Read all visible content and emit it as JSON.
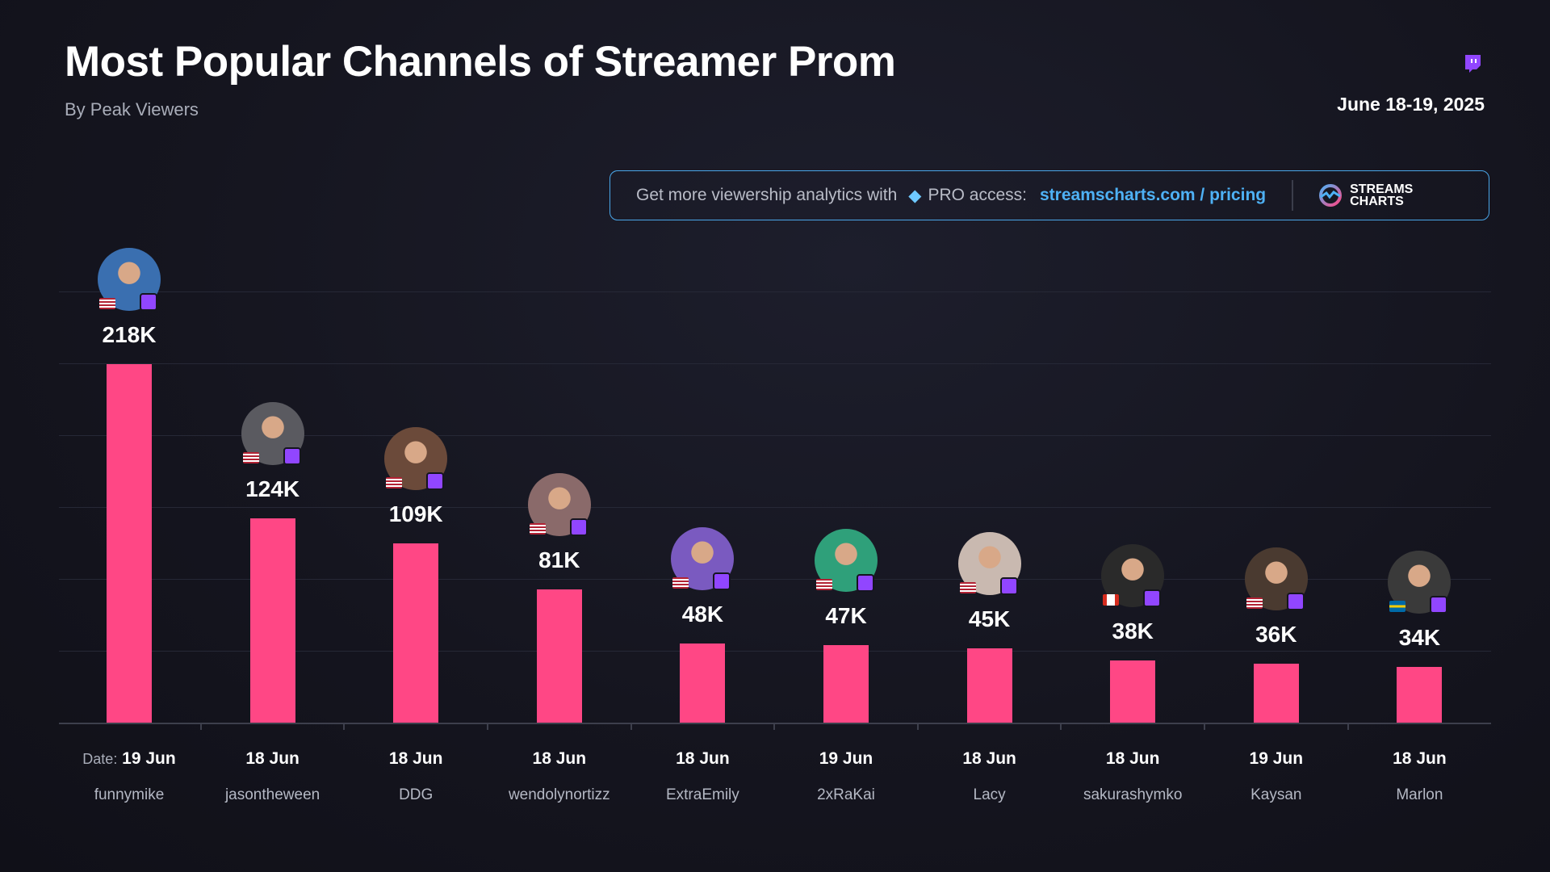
{
  "header": {
    "title": "Most Popular Channels of Streamer Prom",
    "subtitle": "By Peak Viewers",
    "date": "June 18-19, 2025"
  },
  "banner": {
    "text": "Get more viewership analytics with",
    "pro": "PRO access:",
    "link": "streamscharts.com / pricing",
    "logo_line1": "STREAMS",
    "logo_line2": "CHARTS"
  },
  "colors": {
    "bar": "#ff4785",
    "twitch": "#9146ff",
    "accent": "#4eb1f5"
  },
  "chart_data": {
    "type": "bar",
    "title": "Most Popular Channels of Streamer Prom",
    "subtitle": "By Peak Viewers",
    "date_prefix": "Date:",
    "categories": [
      "funnymike",
      "jasontheween",
      "DDG",
      "wendolynortizz",
      "ExtraEmily",
      "2xRaKai",
      "Lacy",
      "sakurashymko",
      "Kaysan",
      "Marlon"
    ],
    "dates": [
      "19 Jun",
      "18 Jun",
      "18 Jun",
      "18 Jun",
      "18 Jun",
      "19 Jun",
      "18 Jun",
      "18 Jun",
      "19 Jun",
      "18 Jun"
    ],
    "values": [
      218,
      124,
      109,
      81,
      48,
      47,
      45,
      38,
      36,
      34
    ],
    "labels": [
      "218K",
      "124K",
      "109K",
      "81K",
      "48K",
      "47K",
      "45K",
      "38K",
      "36K",
      "34K"
    ],
    "flags": [
      "us",
      "us",
      "us",
      "us",
      "us",
      "us",
      "us",
      "ca",
      "us",
      "se"
    ],
    "platform": "twitch",
    "unit": "K peak viewers",
    "ylim": [
      0,
      240
    ],
    "grid": true
  }
}
